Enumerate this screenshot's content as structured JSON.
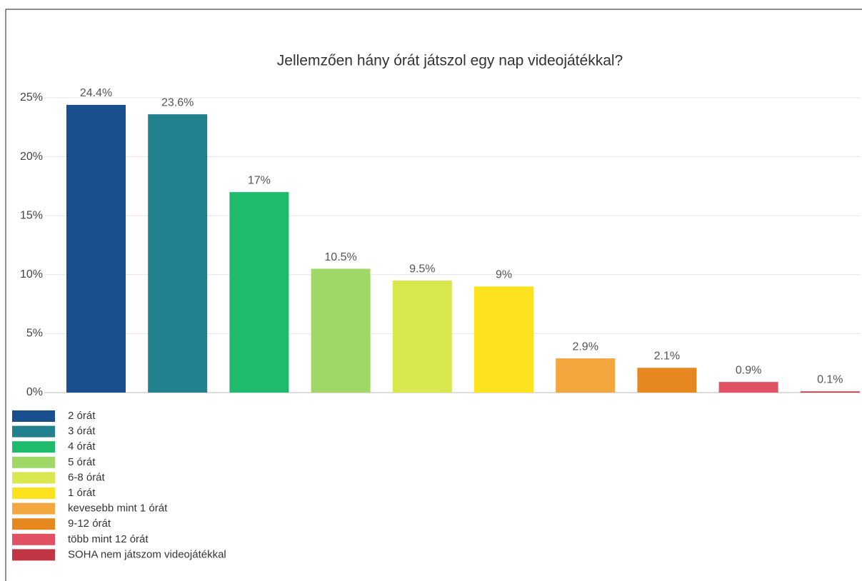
{
  "chart_data": {
    "type": "bar",
    "title": "Jellemzően hány órát játszol egy nap videojátékkal?",
    "categories": [
      "2 órát",
      "3 órát",
      "4 órát",
      "5 órát",
      "6-8 órát",
      "1 órát",
      "kevesebb mint 1 órát",
      "9-12 órát",
      "több mint 12 órát",
      "SOHA nem játszom videojátékkal"
    ],
    "values": [
      24.4,
      23.6,
      17,
      10.5,
      9.5,
      9,
      2.9,
      2.1,
      0.9,
      0.1
    ],
    "value_labels": [
      "24.4%",
      "23.6%",
      "17%",
      "10.5%",
      "9.5%",
      "9%",
      "2.9%",
      "2.1%",
      "0.9%",
      "0.1%"
    ],
    "colors": [
      "#1a4f8f",
      "#23808f",
      "#1fbb6c",
      "#9fd866",
      "#d9e84e",
      "#fde21d",
      "#f2a73f",
      "#e6871f",
      "#e05263",
      "#c13545"
    ],
    "ylim": [
      0,
      25
    ],
    "yticks": [
      {
        "value": 0,
        "label": "0%"
      },
      {
        "value": 5,
        "label": "5%"
      },
      {
        "value": 10,
        "label": "10%"
      },
      {
        "value": 15,
        "label": "15%"
      },
      {
        "value": 20,
        "label": "20%"
      },
      {
        "value": 25,
        "label": "25%"
      }
    ],
    "grid": true
  }
}
